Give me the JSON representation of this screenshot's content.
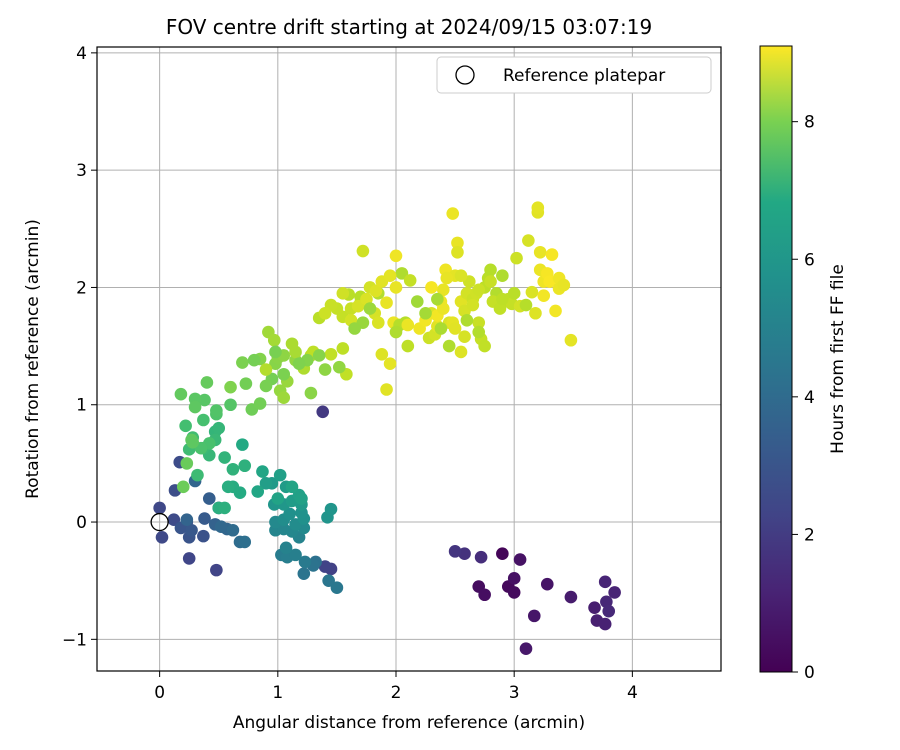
{
  "chart_data": {
    "type": "scatter",
    "title": "FOV centre drift starting at 2024/09/15 03:07:19",
    "xlabel": "Angular distance from reference (arcmin)",
    "ylabel": "Rotation from reference (arcmin)",
    "xlim": [
      -0.53,
      4.75
    ],
    "ylim": [
      -1.27,
      4.05
    ],
    "xticks": [
      0,
      1,
      2,
      3,
      4
    ],
    "yticks": [
      -1,
      0,
      1,
      2,
      3,
      4
    ],
    "grid": true,
    "legend": {
      "position": "top-right",
      "entries": [
        "Reference platepar"
      ]
    },
    "reference_point": {
      "x": 0,
      "y": 0
    },
    "colorbar": {
      "label": "Hours from first FF file",
      "colormap": "viridis",
      "range": [
        0,
        9.1
      ],
      "ticks": [
        0,
        2,
        4,
        6,
        8
      ]
    },
    "points": [
      [
        2.9,
        -0.27,
        0.1
      ],
      [
        2.95,
        -0.55,
        0.2
      ],
      [
        3.0,
        -0.6,
        0.25
      ],
      [
        2.7,
        -0.55,
        0.3
      ],
      [
        2.75,
        -0.62,
        0.35
      ],
      [
        3.0,
        -0.48,
        0.4
      ],
      [
        3.05,
        -0.32,
        0.45
      ],
      [
        3.28,
        -0.53,
        0.5
      ],
      [
        3.17,
        -0.8,
        0.55
      ],
      [
        3.1,
        -1.08,
        0.6
      ],
      [
        3.48,
        -0.64,
        0.7
      ],
      [
        3.68,
        -0.73,
        0.75
      ],
      [
        3.7,
        -0.84,
        0.8
      ],
      [
        3.77,
        -0.87,
        0.85
      ],
      [
        3.85,
        -0.6,
        0.9
      ],
      [
        3.77,
        -0.51,
        0.95
      ],
      [
        3.78,
        -0.68,
        1.0
      ],
      [
        3.8,
        -0.76,
        1.05
      ],
      [
        2.72,
        -0.3,
        1.2
      ],
      [
        2.58,
        -0.27,
        1.3
      ],
      [
        2.5,
        -0.25,
        1.4
      ],
      [
        1.38,
        0.94,
        1.5
      ],
      [
        1.45,
        -0.4,
        1.75
      ],
      [
        1.4,
        -0.38,
        1.8
      ],
      [
        0.48,
        -0.41,
        1.85
      ],
      [
        0.25,
        -0.31,
        1.9
      ],
      [
        0.0,
        0.12,
        1.95
      ],
      [
        0.02,
        -0.13,
        2.0
      ],
      [
        0.12,
        0.02,
        2.05
      ],
      [
        0.17,
        0.51,
        2.1
      ],
      [
        0.13,
        0.27,
        2.15
      ],
      [
        0.23,
        0.0,
        2.2
      ],
      [
        0.37,
        -0.12,
        2.3
      ],
      [
        0.25,
        -0.13,
        2.35
      ],
      [
        0.18,
        -0.05,
        2.4
      ],
      [
        0.27,
        -0.07,
        2.5
      ],
      [
        0.38,
        0.03,
        2.6
      ],
      [
        0.42,
        0.2,
        2.7
      ],
      [
        0.5,
        0.12,
        2.8
      ],
      [
        0.47,
        -0.02,
        2.85
      ],
      [
        0.23,
        0.02,
        2.9
      ],
      [
        0.3,
        0.35,
        2.95
      ],
      [
        0.57,
        -0.06,
        3.0
      ],
      [
        0.52,
        -0.04,
        3.05
      ],
      [
        0.62,
        -0.07,
        3.15
      ],
      [
        0.68,
        -0.17,
        3.2
      ],
      [
        0.72,
        -0.17,
        3.3
      ],
      [
        1.32,
        -0.34,
        3.4
      ],
      [
        1.3,
        -0.37,
        3.45
      ],
      [
        1.22,
        -0.44,
        3.5
      ],
      [
        1.43,
        -0.5,
        3.55
      ],
      [
        1.5,
        -0.56,
        3.6
      ],
      [
        1.23,
        -0.34,
        3.7
      ],
      [
        1.03,
        -0.28,
        3.8
      ],
      [
        1.08,
        -0.3,
        3.85
      ],
      [
        1.15,
        -0.28,
        3.9
      ],
      [
        1.07,
        -0.22,
        4.0
      ],
      [
        1.18,
        -0.13,
        4.05
      ],
      [
        0.98,
        -0.07,
        4.1
      ],
      [
        1.05,
        -0.06,
        4.15
      ],
      [
        1.12,
        -0.08,
        4.2
      ],
      [
        0.98,
        0.0,
        4.25
      ],
      [
        1.22,
        -0.05,
        4.3
      ],
      [
        1.15,
        -0.02,
        4.35
      ],
      [
        1.05,
        0.02,
        4.4
      ],
      [
        1.1,
        0.07,
        4.5
      ],
      [
        1.22,
        0.03,
        4.55
      ],
      [
        1.2,
        0.08,
        4.6
      ],
      [
        1.42,
        0.04,
        4.65
      ],
      [
        1.45,
        0.11,
        4.7
      ],
      [
        0.97,
        0.15,
        4.75
      ],
      [
        1.05,
        0.15,
        4.8
      ],
      [
        1.2,
        0.15,
        4.85
      ],
      [
        0.95,
        0.33,
        4.9
      ],
      [
        1.07,
        0.3,
        4.95
      ],
      [
        1.12,
        0.18,
        5.0
      ],
      [
        0.9,
        0.33,
        5.05
      ],
      [
        1.02,
        0.4,
        5.1
      ],
      [
        1.18,
        0.23,
        5.15
      ],
      [
        1.2,
        0.2,
        5.2
      ],
      [
        1.0,
        0.2,
        5.25
      ],
      [
        1.12,
        0.3,
        5.3
      ],
      [
        0.87,
        0.43,
        5.35
      ],
      [
        0.83,
        0.26,
        5.4
      ],
      [
        0.7,
        0.66,
        5.5
      ],
      [
        0.68,
        0.25,
        5.55
      ],
      [
        0.62,
        0.3,
        5.6
      ],
      [
        0.58,
        0.3,
        5.65
      ],
      [
        0.5,
        0.12,
        5.7
      ],
      [
        0.55,
        0.12,
        5.75
      ],
      [
        0.72,
        0.48,
        5.8
      ],
      [
        0.62,
        0.45,
        5.85
      ],
      [
        0.55,
        0.55,
        5.9
      ],
      [
        0.47,
        0.77,
        5.95
      ],
      [
        0.5,
        0.8,
        6.0
      ],
      [
        0.42,
        0.57,
        6.05
      ],
      [
        0.47,
        0.7,
        6.1
      ],
      [
        0.37,
        0.63,
        6.15
      ],
      [
        0.32,
        0.4,
        6.2
      ],
      [
        0.25,
        0.62,
        6.25
      ],
      [
        0.28,
        0.72,
        6.3
      ],
      [
        0.22,
        0.82,
        6.35
      ],
      [
        0.37,
        0.87,
        6.4
      ],
      [
        0.42,
        0.67,
        6.45
      ],
      [
        0.35,
        0.63,
        6.5
      ],
      [
        0.48,
        0.92,
        6.55
      ],
      [
        0.48,
        0.95,
        6.6
      ],
      [
        0.6,
        1.0,
        6.65
      ],
      [
        0.38,
        1.04,
        6.7
      ],
      [
        0.3,
        1.05,
        6.75
      ],
      [
        0.3,
        0.98,
        6.8
      ],
      [
        0.27,
        0.7,
        6.85
      ],
      [
        0.18,
        1.09,
        6.9
      ],
      [
        0.4,
        1.19,
        6.95
      ],
      [
        0.23,
        0.5,
        7.0
      ],
      [
        0.2,
        0.3,
        7.05
      ],
      [
        0.28,
        0.68,
        6.8
      ],
      [
        0.78,
        0.96,
        7.1
      ],
      [
        0.85,
        1.01,
        7.15
      ],
      [
        0.95,
        1.22,
        7.2
      ],
      [
        0.9,
        1.16,
        7.25
      ],
      [
        0.7,
        1.36,
        7.3
      ],
      [
        0.6,
        1.15,
        7.35
      ],
      [
        0.85,
        1.39,
        7.4
      ],
      [
        0.98,
        1.35,
        7.45
      ],
      [
        1.0,
        1.4,
        7.5
      ],
      [
        1.05,
        1.42,
        7.55
      ],
      [
        1.15,
        1.38,
        7.6
      ],
      [
        1.02,
        1.12,
        7.65
      ],
      [
        1.08,
        1.2,
        7.7
      ],
      [
        1.05,
        1.06,
        7.75
      ],
      [
        0.92,
        1.62,
        7.8
      ],
      [
        0.97,
        1.55,
        7.85
      ],
      [
        1.15,
        1.45,
        7.9
      ],
      [
        1.12,
        1.52,
        7.95
      ],
      [
        1.22,
        1.31,
        8.0
      ],
      [
        0.9,
        1.3,
        8.05
      ],
      [
        1.28,
        1.42,
        8.1
      ],
      [
        1.35,
        1.74,
        8.15
      ],
      [
        1.3,
        1.45,
        8.2
      ],
      [
        1.45,
        1.43,
        8.25
      ],
      [
        1.55,
        1.75,
        8.3
      ],
      [
        1.62,
        1.82,
        8.35
      ],
      [
        1.7,
        1.87,
        8.4
      ],
      [
        1.72,
        2.31,
        8.45
      ],
      [
        1.78,
        2.0,
        8.5
      ],
      [
        1.82,
        1.78,
        8.55
      ],
      [
        1.85,
        1.7,
        8.6
      ],
      [
        1.88,
        1.43,
        8.65
      ],
      [
        1.92,
        1.13,
        8.7
      ],
      [
        1.95,
        1.35,
        8.75
      ],
      [
        1.92,
        1.87,
        8.8
      ],
      [
        1.98,
        1.7,
        8.85
      ],
      [
        2.0,
        2.27,
        8.9
      ],
      [
        2.05,
        2.12,
        8.0
      ],
      [
        2.08,
        1.7,
        8.1
      ],
      [
        2.1,
        1.5,
        8.2
      ],
      [
        2.12,
        2.06,
        8.3
      ],
      [
        2.28,
        1.57,
        8.4
      ],
      [
        2.33,
        1.6,
        8.5
      ],
      [
        2.3,
        1.78,
        8.6
      ],
      [
        2.35,
        1.67,
        8.7
      ],
      [
        2.4,
        1.98,
        8.8
      ],
      [
        2.42,
        2.15,
        8.9
      ],
      [
        2.48,
        2.63,
        8.85
      ],
      [
        2.52,
        2.38,
        8.8
      ],
      [
        2.5,
        2.1,
        8.75
      ],
      [
        2.55,
        1.88,
        8.7
      ],
      [
        2.55,
        1.45,
        8.65
      ],
      [
        2.45,
        1.7,
        8.6
      ],
      [
        2.58,
        1.58,
        8.55
      ],
      [
        2.6,
        1.95,
        8.5
      ],
      [
        2.62,
        2.05,
        8.45
      ],
      [
        2.65,
        1.9,
        8.4
      ],
      [
        2.7,
        1.7,
        8.35
      ],
      [
        2.72,
        1.56,
        8.3
      ],
      [
        2.75,
        1.5,
        8.25
      ],
      [
        2.75,
        2.0,
        8.2
      ],
      [
        2.78,
        2.08,
        8.15
      ],
      [
        2.8,
        2.15,
        8.1
      ],
      [
        2.85,
        1.95,
        8.05
      ],
      [
        2.9,
        2.1,
        8.0
      ],
      [
        2.92,
        1.88,
        8.1
      ],
      [
        2.95,
        1.9,
        8.2
      ],
      [
        2.98,
        1.86,
        8.3
      ],
      [
        3.02,
        2.25,
        8.4
      ],
      [
        3.05,
        1.84,
        8.5
      ],
      [
        3.12,
        2.4,
        8.55
      ],
      [
        3.15,
        1.96,
        8.6
      ],
      [
        3.18,
        1.78,
        8.65
      ],
      [
        3.2,
        2.64,
        8.7
      ],
      [
        3.2,
        2.68,
        8.75
      ],
      [
        3.22,
        2.3,
        8.8
      ],
      [
        3.22,
        2.15,
        8.85
      ],
      [
        3.25,
        2.05,
        8.9
      ],
      [
        3.25,
        1.93,
        8.95
      ],
      [
        3.28,
        2.12,
        9.0
      ],
      [
        3.3,
        2.05,
        9.05
      ],
      [
        3.32,
        2.28,
        9.0
      ],
      [
        3.35,
        1.8,
        8.95
      ],
      [
        3.38,
        2.08,
        8.9
      ],
      [
        3.38,
        1.99,
        8.85
      ],
      [
        3.42,
        2.02,
        8.8
      ],
      [
        3.48,
        1.55,
        8.75
      ],
      [
        2.03,
        1.68,
        8.1
      ],
      [
        2.0,
        1.62,
        8.0
      ],
      [
        1.85,
        1.95,
        8.05
      ],
      [
        1.7,
        1.92,
        8.1
      ],
      [
        1.6,
        1.94,
        8.15
      ],
      [
        1.55,
        1.48,
        8.2
      ],
      [
        1.58,
        1.26,
        8.25
      ],
      [
        1.5,
        1.82,
        8.3
      ],
      [
        1.45,
        1.85,
        8.35
      ],
      [
        1.4,
        1.78,
        8.4
      ],
      [
        1.55,
        1.95,
        8.45
      ],
      [
        1.62,
        1.72,
        8.5
      ],
      [
        1.68,
        1.84,
        8.55
      ],
      [
        1.75,
        1.9,
        8.6
      ],
      [
        1.83,
        1.97,
        8.65
      ],
      [
        1.88,
        2.05,
        8.7
      ],
      [
        1.95,
        2.1,
        8.75
      ],
      [
        2.0,
        2.0,
        8.8
      ],
      [
        2.1,
        1.68,
        8.85
      ],
      [
        2.2,
        1.65,
        8.9
      ],
      [
        2.25,
        1.72,
        8.95
      ],
      [
        2.3,
        2.0,
        9.0
      ],
      [
        2.35,
        1.76,
        8.95
      ],
      [
        2.38,
        1.88,
        8.9
      ],
      [
        2.4,
        1.82,
        8.85
      ],
      [
        2.43,
        2.08,
        8.8
      ],
      [
        2.48,
        1.7,
        8.75
      ],
      [
        2.5,
        1.65,
        8.7
      ],
      [
        2.52,
        2.3,
        8.65
      ],
      [
        2.55,
        2.1,
        8.6
      ],
      [
        2.58,
        1.8,
        8.55
      ],
      [
        2.65,
        1.85,
        8.5
      ],
      [
        2.68,
        1.95,
        8.45
      ],
      [
        2.7,
        1.98,
        8.4
      ],
      [
        2.8,
        2.05,
        8.35
      ],
      [
        2.82,
        1.88,
        8.3
      ],
      [
        2.88,
        1.82,
        8.25
      ],
      [
        2.9,
        1.9,
        8.2
      ],
      [
        3.0,
        1.95,
        8.15
      ],
      [
        3.1,
        1.85,
        8.1
      ],
      [
        2.7,
        1.62,
        8.05
      ],
      [
        2.6,
        1.72,
        8.0
      ],
      [
        2.45,
        1.5,
        8.0
      ],
      [
        2.38,
        1.65,
        7.95
      ],
      [
        2.35,
        1.9,
        7.9
      ],
      [
        2.25,
        1.78,
        7.85
      ],
      [
        2.18,
        1.88,
        7.8
      ],
      [
        1.78,
        1.82,
        7.75
      ],
      [
        1.72,
        1.7,
        7.7
      ],
      [
        1.65,
        1.65,
        7.65
      ],
      [
        1.52,
        1.32,
        7.6
      ],
      [
        1.4,
        1.3,
        7.55
      ],
      [
        1.28,
        1.1,
        7.5
      ],
      [
        1.35,
        1.42,
        7.45
      ],
      [
        1.25,
        1.38,
        7.4
      ],
      [
        1.18,
        1.35,
        7.35
      ],
      [
        1.05,
        1.26,
        7.3
      ],
      [
        0.98,
        1.45,
        7.25
      ],
      [
        0.8,
        1.38,
        7.2
      ],
      [
        0.73,
        1.18,
        7.15
      ]
    ]
  }
}
